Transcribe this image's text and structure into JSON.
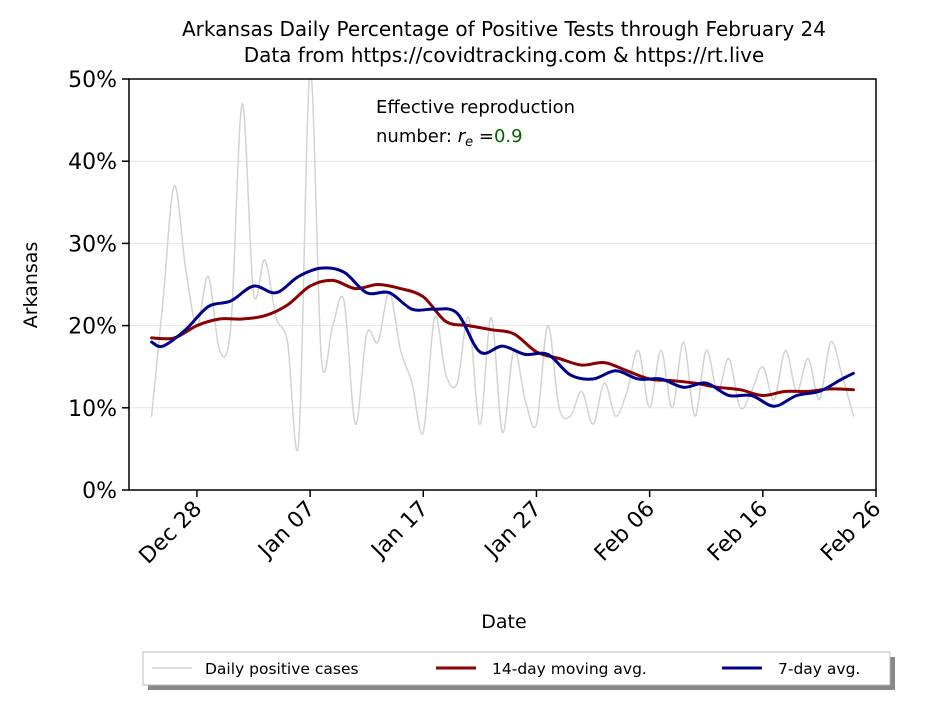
{
  "chart_data": {
    "type": "line",
    "title": "Arkansas Daily Percentage of Positive Tests through February 24",
    "subtitle": "Data from https://covidtracking.com & https://rt.live",
    "xlabel": "Date",
    "ylabel": "Arkansas",
    "x_axis": {
      "start": "2020-12-22",
      "end": "2021-02-26",
      "tick_dates": [
        "2020-12-28",
        "2021-01-07",
        "2021-01-17",
        "2021-01-27",
        "2021-02-06",
        "2021-02-16",
        "2021-02-26"
      ],
      "tick_labels": [
        "Dec 28",
        "Jan 07",
        "Jan 17",
        "Jan 27",
        "Feb 06",
        "Feb 16",
        "Feb 26"
      ]
    },
    "y_axis": {
      "range": [
        0,
        50
      ],
      "ticks": [
        0,
        10,
        20,
        30,
        40,
        50
      ],
      "tick_labels": [
        "0%",
        "10%",
        "20%",
        "30%",
        "40%",
        "50%"
      ]
    },
    "grid": "horizontal",
    "legend_position": "bottom",
    "annotation": {
      "line1": "Effective reproduction",
      "line2_prefix": "number: ",
      "symbol": "r",
      "subscript": "e",
      "equals": " =",
      "value": "0.9",
      "value_color": "#006400"
    },
    "series": [
      {
        "name": "Daily positive cases",
        "color": "#d3d3d3",
        "x": [
          "2020-12-24",
          "2020-12-25",
          "2020-12-26",
          "2020-12-27",
          "2020-12-28",
          "2020-12-29",
          "2020-12-30",
          "2020-12-31",
          "2021-01-01",
          "2021-01-02",
          "2021-01-03",
          "2021-01-04",
          "2021-01-05",
          "2021-01-06",
          "2021-01-07",
          "2021-01-08",
          "2021-01-09",
          "2021-01-10",
          "2021-01-11",
          "2021-01-12",
          "2021-01-13",
          "2021-01-14",
          "2021-01-15",
          "2021-01-16",
          "2021-01-17",
          "2021-01-18",
          "2021-01-19",
          "2021-01-20",
          "2021-01-21",
          "2021-01-22",
          "2021-01-23",
          "2021-01-24",
          "2021-01-25",
          "2021-01-26",
          "2021-01-27",
          "2021-01-28",
          "2021-01-29",
          "2021-01-30",
          "2021-01-31",
          "2021-02-01",
          "2021-02-02",
          "2021-02-03",
          "2021-02-04",
          "2021-02-05",
          "2021-02-06",
          "2021-02-07",
          "2021-02-08",
          "2021-02-09",
          "2021-02-10",
          "2021-02-11",
          "2021-02-12",
          "2021-02-13",
          "2021-02-14",
          "2021-02-15",
          "2021-02-16",
          "2021-02-17",
          "2021-02-18",
          "2021-02-19",
          "2021-02-20",
          "2021-02-21",
          "2021-02-22",
          "2021-02-23",
          "2021-02-24"
        ],
        "values": [
          9,
          23,
          37,
          27,
          20,
          26,
          17,
          20,
          47,
          24,
          28,
          21,
          18,
          6,
          51,
          16,
          20,
          23,
          8,
          19,
          18,
          24,
          17,
          13,
          7,
          21,
          14,
          13,
          21,
          8,
          21,
          7,
          17,
          11,
          8,
          20,
          10,
          9,
          12,
          8,
          13,
          9,
          12,
          17,
          10,
          17,
          10,
          18,
          9,
          17,
          12,
          16,
          10,
          12,
          15,
          11,
          17,
          12,
          16,
          11,
          18,
          14,
          9
        ]
      },
      {
        "name": "14-day moving avg.",
        "color": "#8b0000",
        "x": [
          "2020-12-24",
          "2020-12-26",
          "2020-12-28",
          "2020-12-30",
          "2021-01-01",
          "2021-01-03",
          "2021-01-05",
          "2021-01-07",
          "2021-01-09",
          "2021-01-11",
          "2021-01-13",
          "2021-01-15",
          "2021-01-17",
          "2021-01-19",
          "2021-01-21",
          "2021-01-23",
          "2021-01-25",
          "2021-01-27",
          "2021-01-29",
          "2021-01-31",
          "2021-02-02",
          "2021-02-04",
          "2021-02-06",
          "2021-02-08",
          "2021-02-10",
          "2021-02-12",
          "2021-02-14",
          "2021-02-16",
          "2021-02-18",
          "2021-02-20",
          "2021-02-22",
          "2021-02-24"
        ],
        "values": [
          18.5,
          18.5,
          20.0,
          20.8,
          20.8,
          21.2,
          22.5,
          24.8,
          25.5,
          24.5,
          25.0,
          24.5,
          23.5,
          20.5,
          20.0,
          19.5,
          19.0,
          16.8,
          16.0,
          15.2,
          15.5,
          14.5,
          13.5,
          13.3,
          13.0,
          12.5,
          12.2,
          11.5,
          12.0,
          12.0,
          12.3,
          12.2
        ]
      },
      {
        "name": "7-day avg.",
        "color": "#00008b",
        "x": [
          "2020-12-24",
          "2020-12-25",
          "2020-12-27",
          "2020-12-29",
          "2020-12-31",
          "2021-01-02",
          "2021-01-04",
          "2021-01-06",
          "2021-01-08",
          "2021-01-10",
          "2021-01-12",
          "2021-01-14",
          "2021-01-16",
          "2021-01-18",
          "2021-01-20",
          "2021-01-22",
          "2021-01-24",
          "2021-01-26",
          "2021-01-28",
          "2021-01-30",
          "2021-02-01",
          "2021-02-03",
          "2021-02-05",
          "2021-02-07",
          "2021-02-09",
          "2021-02-11",
          "2021-02-13",
          "2021-02-15",
          "2021-02-17",
          "2021-02-19",
          "2021-02-21",
          "2021-02-23",
          "2021-02-24"
        ],
        "values": [
          18.0,
          17.5,
          19.5,
          22.3,
          23.0,
          24.8,
          24.0,
          26.0,
          27.0,
          26.5,
          24.0,
          24.0,
          22.0,
          22.0,
          21.5,
          16.8,
          17.5,
          16.5,
          16.5,
          14.0,
          13.5,
          14.5,
          13.5,
          13.5,
          12.5,
          13.0,
          11.5,
          11.5,
          10.2,
          11.5,
          12.0,
          13.5,
          14.2
        ]
      }
    ]
  }
}
